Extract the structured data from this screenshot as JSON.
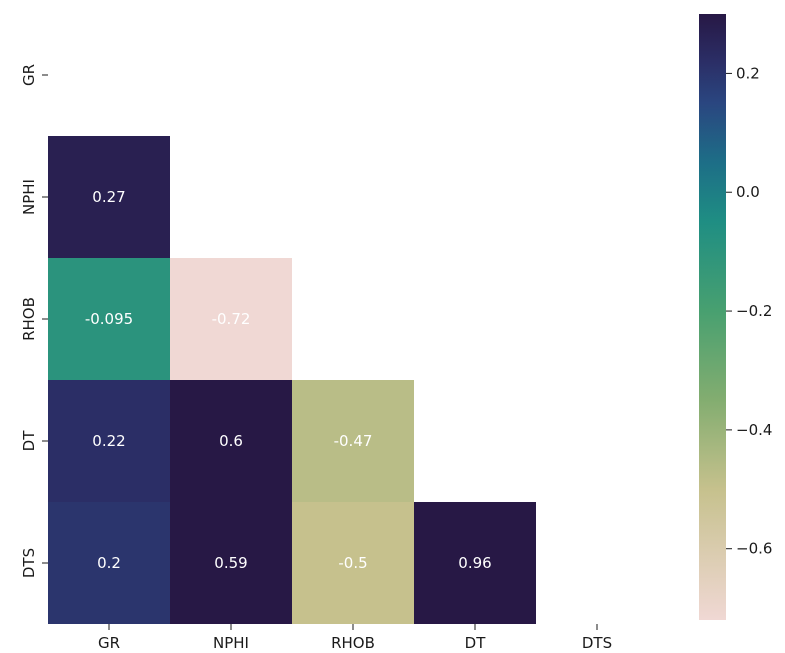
{
  "chart_data": {
    "type": "heatmap",
    "title": "",
    "xlabel": "",
    "ylabel": "",
    "row_labels": [
      "GR",
      "NPHI",
      "RHOB",
      "DT",
      "DTS"
    ],
    "col_labels": [
      "GR",
      "NPHI",
      "RHOB",
      "DT",
      "DTS"
    ],
    "mask": "upper triangle including diagonal",
    "cells": [
      {
        "row": "NPHI",
        "col": "GR",
        "value": 0.27,
        "label": "0.27"
      },
      {
        "row": "RHOB",
        "col": "GR",
        "value": -0.095,
        "label": "-0.095"
      },
      {
        "row": "RHOB",
        "col": "NPHI",
        "value": -0.72,
        "label": "-0.72"
      },
      {
        "row": "DT",
        "col": "GR",
        "value": 0.22,
        "label": "0.22"
      },
      {
        "row": "DT",
        "col": "NPHI",
        "value": 0.6,
        "label": "0.6"
      },
      {
        "row": "DT",
        "col": "RHOB",
        "value": -0.47,
        "label": "-0.47"
      },
      {
        "row": "DTS",
        "col": "GR",
        "value": 0.2,
        "label": "0.2"
      },
      {
        "row": "DTS",
        "col": "NPHI",
        "value": 0.59,
        "label": "0.59"
      },
      {
        "row": "DTS",
        "col": "RHOB",
        "value": -0.5,
        "label": "-0.5"
      },
      {
        "row": "DTS",
        "col": "DT",
        "value": 0.96,
        "label": "0.96"
      }
    ],
    "colorbar": {
      "range": [
        -0.72,
        0.3
      ],
      "ticks": [
        {
          "value": 0.2,
          "label": "0.2"
        },
        {
          "value": 0.0,
          "label": "0.0"
        },
        {
          "value": -0.2,
          "label": "−0.2"
        },
        {
          "value": -0.4,
          "label": "−0.4"
        },
        {
          "value": -0.6,
          "label": "−0.6"
        }
      ],
      "colormap_stops": [
        {
          "value": -0.72,
          "color": "#f0d8d4"
        },
        {
          "value": -0.5,
          "color": "#c6c18d"
        },
        {
          "value": -0.35,
          "color": "#83ad70"
        },
        {
          "value": -0.2,
          "color": "#48a070"
        },
        {
          "value": -0.05,
          "color": "#1f8e83"
        },
        {
          "value": 0.05,
          "color": "#1d6e87"
        },
        {
          "value": 0.15,
          "color": "#2a4680"
        },
        {
          "value": 0.22,
          "color": "#2b2e66"
        },
        {
          "value": 0.3,
          "color": "#271845"
        }
      ]
    }
  }
}
